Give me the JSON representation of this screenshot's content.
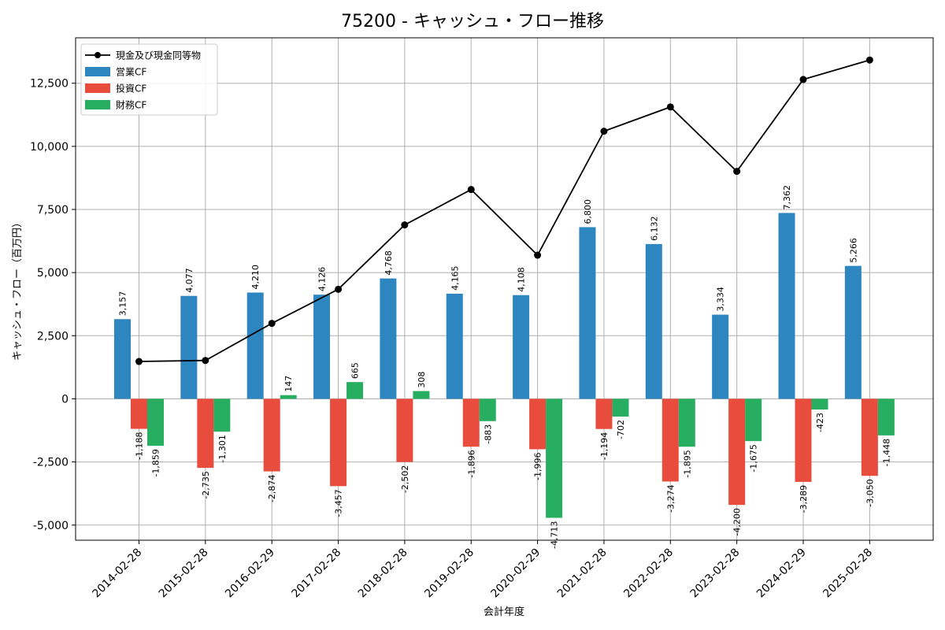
{
  "chart_data": {
    "type": "bar",
    "title": "75200 - キャッシュ・フロー推移",
    "xlabel": "会計年度",
    "ylabel": "キャッシュ・フロー（百万円）",
    "ylim": [
      -5600,
      14300
    ],
    "yticks": [
      -5000,
      -2500,
      0,
      2500,
      5000,
      7500,
      10000,
      12500
    ],
    "ytick_labels": [
      "-5,000",
      "-2,500",
      "0",
      "2,500",
      "5,000",
      "7,500",
      "10,000",
      "12,500"
    ],
    "grid": true,
    "legend_position": "top-left",
    "categories": [
      "2014-02-28",
      "2015-02-28",
      "2016-02-29",
      "2017-02-28",
      "2018-02-28",
      "2019-02-28",
      "2020-02-29",
      "2021-02-28",
      "2022-02-28",
      "2023-02-28",
      "2024-02-29",
      "2025-02-28"
    ],
    "series": [
      {
        "name": "営業CF",
        "type": "bar",
        "color": "#2e86c1",
        "values": [
          3157,
          4077,
          4210,
          4126,
          4768,
          4165,
          4108,
          6800,
          6132,
          3334,
          7362,
          5266
        ],
        "labels": [
          "3,157",
          "4,077",
          "4,210",
          "4,126",
          "4,768",
          "4,165",
          "4,108",
          "6,800",
          "6,132",
          "3,334",
          "7,362",
          "5,266"
        ]
      },
      {
        "name": "投資CF",
        "type": "bar",
        "color": "#e74c3c",
        "values": [
          -1188,
          -2735,
          -2874,
          -3457,
          -2502,
          -1896,
          -1996,
          -1194,
          -3274,
          -4200,
          -3289,
          -3050
        ],
        "labels": [
          "-1,188",
          "-2,735",
          "-2,874",
          "-3,457",
          "-2,502",
          "-1,896",
          "-1,996",
          "-1,194",
          "-3,274",
          "-4,200",
          "-3,289",
          "-3,050"
        ]
      },
      {
        "name": "財務CF",
        "type": "bar",
        "color": "#27ae60",
        "values": [
          -1859,
          -1301,
          147,
          665,
          308,
          -883,
          -4713,
          -702,
          -1895,
          -1675,
          -423,
          -1448
        ],
        "labels": [
          "-1,859",
          "-1,301",
          "147",
          "665",
          "308",
          "-883",
          "-4,713",
          "-702",
          "-1,895",
          "-1,675",
          "-423",
          "-1,448"
        ]
      },
      {
        "name": "現金及び現金同等物",
        "type": "line",
        "color": "#000000",
        "values": [
          1480,
          1520,
          2990,
          4340,
          6890,
          8290,
          5690,
          10600,
          11560,
          9010,
          12650,
          13420
        ]
      }
    ]
  }
}
